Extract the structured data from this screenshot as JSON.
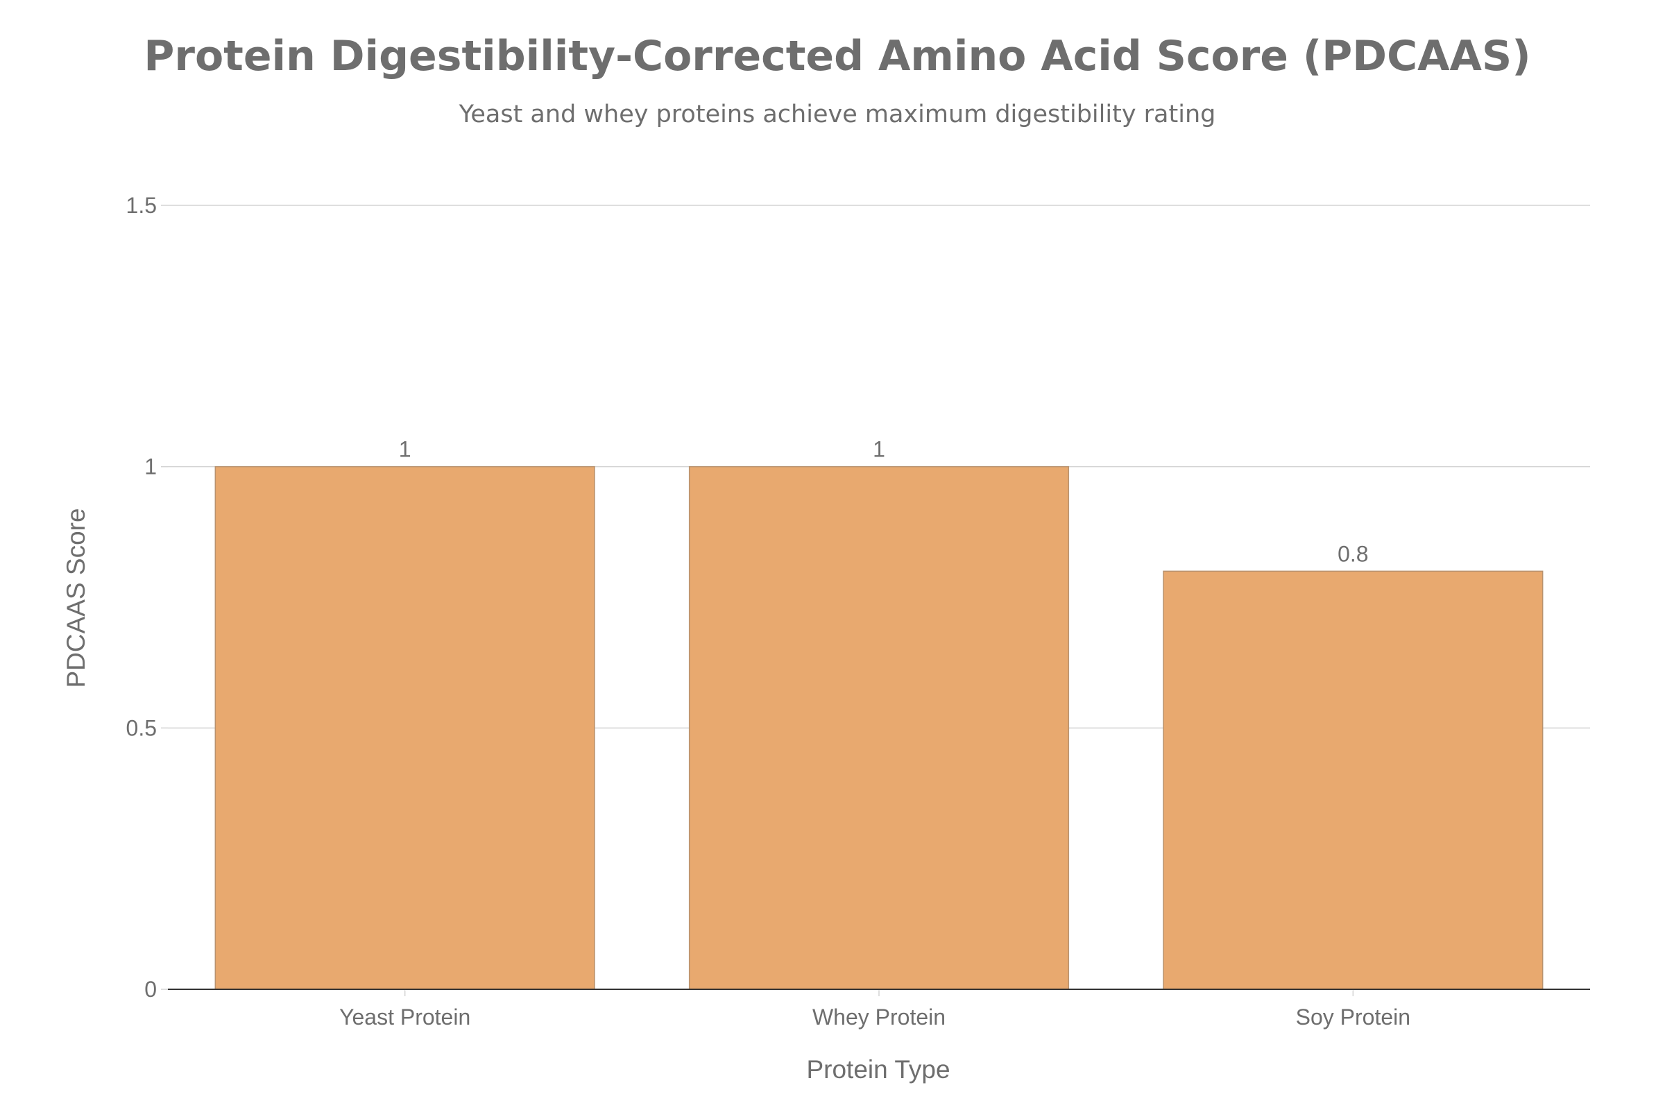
{
  "chart_data": {
    "type": "bar",
    "title": "Protein Digestibility-Corrected Amino Acid Score (PDCAAS)",
    "subtitle": "Yeast and whey proteins achieve maximum digestibility rating",
    "xlabel": "Protein Type",
    "ylabel": "PDCAAS Score",
    "categories": [
      "Yeast Protein",
      "Whey Protein",
      "Soy Protein"
    ],
    "values": [
      1,
      1,
      0.8
    ],
    "data_labels": [
      "1",
      "1",
      "0.8"
    ],
    "ylim": [
      0,
      1.5
    ],
    "yticks": [
      0,
      0.5,
      1,
      1.5
    ],
    "ytick_labels": [
      "0",
      "0.5",
      "1",
      "1.5"
    ],
    "grid": true,
    "legend": "none",
    "colors": {
      "bar_fill": "#e8a96f",
      "bar_stroke": "#b8926f",
      "text": "#6e6e6e",
      "grid": "#d3d3d3",
      "axis_line": "#333333"
    }
  }
}
